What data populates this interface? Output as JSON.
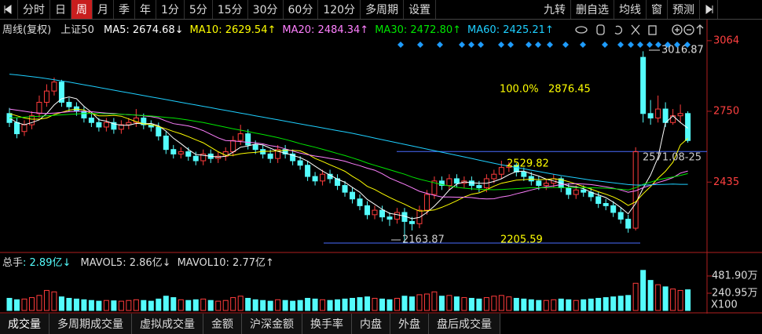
{
  "toolbar": {
    "left": [
      "分时",
      "日",
      "周",
      "月",
      "季",
      "年",
      "1分",
      "5分",
      "15分",
      "30分",
      "60分",
      "120分",
      "多周期",
      "设置"
    ],
    "right": [
      "九转",
      "删自选",
      "均线",
      "窗",
      "预测"
    ],
    "active": "周"
  },
  "tabs": {
    "items": [
      "成交量",
      "多周期成交量",
      "虚拟成交量",
      "金额",
      "沪深金额",
      "换手率",
      "内盘",
      "外盘",
      "盘后成交量"
    ],
    "active": "成交量"
  },
  "chart_data": {
    "type": "candlestick",
    "title": "周线(复权)",
    "subtitle": "上证50",
    "up_color": "#ff3c3c",
    "down_color": "#54fcfc",
    "open": [
      2740,
      2700,
      2660,
      2690,
      2740,
      2790,
      2840,
      2880,
      2790,
      2770,
      2750,
      2720,
      2700,
      2680,
      2700,
      2670,
      2690,
      2700,
      2720,
      2690,
      2680,
      2640,
      2580,
      2560,
      2570,
      2550,
      2530,
      2560,
      2540,
      2550,
      2570,
      2620,
      2650,
      2600,
      2580,
      2560,
      2540,
      2580,
      2560,
      2530,
      2510,
      2460,
      2440,
      2470,
      2450,
      2420,
      2390,
      2360,
      2330,
      2290,
      2310,
      2280,
      2270,
      2300,
      2260,
      2250,
      2310,
      2380,
      2440,
      2420,
      2450,
      2430,
      2440,
      2420,
      2410,
      2450,
      2470,
      2500,
      2510,
      2480,
      2460,
      2440,
      2420,
      2430,
      2450,
      2410,
      2380,
      2400,
      2390,
      2370,
      2340,
      2330,
      2300,
      2270,
      2230,
      2990,
      2740,
      2720,
      2760,
      2700,
      2730,
      2740
    ],
    "high": [
      2765,
      2720,
      2710,
      2750,
      2820,
      2870,
      2900,
      2890,
      2810,
      2790,
      2770,
      2740,
      2720,
      2720,
      2720,
      2710,
      2720,
      2760,
      2740,
      2710,
      2700,
      2660,
      2600,
      2590,
      2590,
      2570,
      2580,
      2580,
      2570,
      2590,
      2640,
      2690,
      2670,
      2620,
      2600,
      2580,
      2600,
      2600,
      2580,
      2550,
      2530,
      2480,
      2490,
      2490,
      2470,
      2440,
      2410,
      2380,
      2350,
      2330,
      2330,
      2300,
      2320,
      2320,
      2280,
      2330,
      2400,
      2460,
      2460,
      2470,
      2470,
      2460,
      2460,
      2440,
      2470,
      2490,
      2529.82,
      2525,
      2520,
      2500,
      2480,
      2460,
      2450,
      2470,
      2460,
      2430,
      2420,
      2420,
      2410,
      2390,
      2360,
      2350,
      2320,
      2290,
      2590,
      3016.87,
      2800,
      2820,
      2790,
      2760,
      2780,
      2750
    ],
    "low": [
      2680,
      2630,
      2640,
      2670,
      2720,
      2770,
      2820,
      2770,
      2750,
      2730,
      2700,
      2680,
      2660,
      2660,
      2650,
      2650,
      2670,
      2680,
      2670,
      2660,
      2620,
      2560,
      2540,
      2540,
      2530,
      2510,
      2510,
      2520,
      2520,
      2530,
      2550,
      2600,
      2580,
      2560,
      2540,
      2520,
      2520,
      2540,
      2510,
      2490,
      2440,
      2420,
      2420,
      2430,
      2400,
      2370,
      2340,
      2310,
      2270,
      2270,
      2260,
      2240,
      2250,
      2163.87,
      2220,
      2230,
      2290,
      2360,
      2400,
      2400,
      2410,
      2410,
      2400,
      2390,
      2390,
      2430,
      2450,
      2480,
      2460,
      2440,
      2420,
      2400,
      2400,
      2410,
      2390,
      2360,
      2360,
      2370,
      2350,
      2320,
      2310,
      2280,
      2250,
      2210,
      2220,
      2700,
      2690,
      2700,
      2680,
      2690,
      2700,
      2610
    ],
    "close": [
      2700,
      2650,
      2690,
      2730,
      2790,
      2840,
      2880,
      2790,
      2770,
      2750,
      2720,
      2700,
      2680,
      2700,
      2670,
      2690,
      2700,
      2720,
      2690,
      2680,
      2640,
      2580,
      2560,
      2570,
      2550,
      2530,
      2560,
      2540,
      2550,
      2570,
      2620,
      2650,
      2600,
      2580,
      2560,
      2540,
      2580,
      2560,
      2530,
      2510,
      2460,
      2440,
      2470,
      2450,
      2420,
      2390,
      2360,
      2330,
      2290,
      2310,
      2280,
      2270,
      2300,
      2260,
      2250,
      2310,
      2380,
      2440,
      2420,
      2450,
      2430,
      2440,
      2420,
      2410,
      2450,
      2470,
      2500,
      2510,
      2480,
      2460,
      2440,
      2420,
      2430,
      2450,
      2410,
      2380,
      2400,
      2390,
      2370,
      2340,
      2330,
      2300,
      2270,
      2230,
      2570,
      2740,
      2720,
      2760,
      2700,
      2730,
      2740,
      2620
    ],
    "ylim": [
      2136,
      3088
    ],
    "yticks": [
      3064,
      2750,
      2435
    ],
    "ma_series": [
      {
        "name": "MA5",
        "color": "#ffffff",
        "value_label": ": 2674.68↓",
        "values": [
          2720,
          2700,
          2690,
          2700,
          2712,
          2740,
          2778,
          2806,
          2814,
          2806,
          2772,
          2746,
          2712,
          2706,
          2694,
          2688,
          2688,
          2696,
          2694,
          2696,
          2686,
          2662,
          2630,
          2606,
          2580,
          2558,
          2554,
          2550,
          2546,
          2550,
          2568,
          2590,
          2596,
          2604,
          2600,
          2586,
          2572,
          2564,
          2554,
          2544,
          2528,
          2506,
          2484,
          2466,
          2448,
          2434,
          2412,
          2390,
          2358,
          2336,
          2314,
          2296,
          2290,
          2284,
          2272,
          2278,
          2300,
          2328,
          2362,
          2400,
          2426,
          2436,
          2432,
          2430,
          2430,
          2438,
          2450,
          2468,
          2482,
          2484,
          2472,
          2462,
          2448,
          2440,
          2430,
          2418,
          2414,
          2406,
          2390,
          2378,
          2366,
          2346,
          2322,
          2294,
          2340,
          2408,
          2466,
          2544,
          2698,
          2730,
          2700,
          2674.68
        ]
      },
      {
        "name": "MA10",
        "color": "#ffff00",
        "value_label": ": 2629.54↑",
        "values": [
          2740,
          2730,
          2720,
          2715,
          2715,
          2720,
          2735,
          2745,
          2755,
          2760,
          2756,
          2740,
          2730,
          2730,
          2732,
          2728,
          2716,
          2704,
          2694,
          2690,
          2682,
          2672,
          2660,
          2650,
          2637,
          2623,
          2610,
          2590,
          2570,
          2554,
          2554,
          2561,
          2565,
          2567,
          2572,
          2572,
          2574,
          2576,
          2576,
          2574,
          2560,
          2540,
          2527,
          2512,
          2498,
          2483,
          2461,
          2441,
          2416,
          2402,
          2384,
          2367,
          2351,
          2337,
          2320,
          2306,
          2308,
          2311,
          2323,
          2337,
          2352,
          2369,
          2381,
          2387,
          2401,
          2417,
          2430,
          2437,
          2444,
          2446,
          2448,
          2446,
          2447,
          2450,
          2446,
          2437,
          2427,
          2415,
          2404,
          2392,
          2381,
          2369,
          2353,
          2331,
          2347,
          2383,
          2415,
          2452,
          2483,
          2523,
          2600,
          2629.54
        ]
      },
      {
        "name": "MA20",
        "color": "#ff80ff",
        "value_label": ": 2484.34↑",
        "values": [
          2760,
          2755,
          2750,
          2745,
          2742,
          2740,
          2742,
          2745,
          2748,
          2750,
          2750,
          2748,
          2745,
          2742,
          2740,
          2737,
          2735,
          2733,
          2730,
          2726,
          2720,
          2707,
          2695,
          2690,
          2685,
          2676,
          2664,
          2648,
          2632,
          2620,
          2618,
          2615,
          2612,
          2610,
          2605,
          2597,
          2592,
          2583,
          2573,
          2564,
          2557,
          2551,
          2546,
          2540,
          2535,
          2528,
          2517,
          2508,
          2497,
          2488,
          2472,
          2453,
          2439,
          2425,
          2410,
          2394,
          2385,
          2376,
          2369,
          2369,
          2368,
          2368,
          2366,
          2362,
          2360,
          2361,
          2369,
          2374,
          2383,
          2391,
          2400,
          2408,
          2414,
          2418,
          2424,
          2427,
          2428,
          2426,
          2424,
          2419,
          2414,
          2408,
          2400,
          2390,
          2396,
          2410,
          2421,
          2433,
          2443,
          2455,
          2475,
          2484.34
        ]
      },
      {
        "name": "MA30",
        "color": "#00e600",
        "value_label": ": 2472.80↑",
        "values": [
          2720,
          2722,
          2724,
          2726,
          2728,
          2730,
          2732,
          2734,
          2736,
          2738,
          2740,
          2740,
          2740,
          2739,
          2738,
          2737,
          2735,
          2733,
          2731,
          2729,
          2726,
          2723,
          2720,
          2716,
          2711,
          2705,
          2700,
          2693,
          2686,
          2679,
          2672,
          2666,
          2660,
          2653,
          2647,
          2640,
          2633,
          2625,
          2616,
          2606,
          2598,
          2590,
          2581,
          2572,
          2562,
          2553,
          2543,
          2532,
          2520,
          2510,
          2500,
          2490,
          2480,
          2470,
          2458,
          2448,
          2440,
          2432,
          2424,
          2418,
          2412,
          2408,
          2405,
          2403,
          2402,
          2401,
          2402,
          2404,
          2406,
          2408,
          2410,
          2410,
          2410,
          2411,
          2411,
          2410,
          2410,
          2410,
          2410,
          2409,
          2408,
          2406,
          2403,
          2400,
          2410,
          2425,
          2435,
          2445,
          2452,
          2458,
          2465,
          2472.8
        ]
      },
      {
        "name": "MA60",
        "color": "#1ecfff",
        "value_label": ": 2425.21↑",
        "values": [
          2915,
          2912,
          2908,
          2904,
          2900,
          2895,
          2890,
          2885,
          2880,
          2874,
          2868,
          2862,
          2856,
          2850,
          2844,
          2838,
          2832,
          2826,
          2820,
          2814,
          2808,
          2802,
          2796,
          2790,
          2784,
          2778,
          2772,
          2766,
          2760,
          2754,
          2748,
          2742,
          2736,
          2730,
          2724,
          2718,
          2712,
          2706,
          2700,
          2694,
          2688,
          2682,
          2676,
          2670,
          2664,
          2658,
          2652,
          2645,
          2638,
          2631,
          2624,
          2617,
          2610,
          2603,
          2596,
          2589,
          2582,
          2575,
          2568,
          2561,
          2554,
          2547,
          2540,
          2533,
          2526,
          2519,
          2512,
          2506,
          2500,
          2494,
          2488,
          2482,
          2476,
          2470,
          2464,
          2459,
          2454,
          2449,
          2444,
          2440,
          2436,
          2432,
          2428,
          2424,
          2422,
          2422,
          2423,
          2424,
          2425,
          2426,
          2425,
          2425.21
        ]
      }
    ],
    "annotations": [
      {
        "text": "3016.87"
      },
      {
        "text": "100.0%"
      },
      {
        "text": "2876.45"
      },
      {
        "text": "2529.82"
      },
      {
        "text": "2571.08-25",
        "level": 2571.08
      },
      {
        "text": "2163.87",
        "level": 2163.87
      },
      {
        "text": "2205.59"
      }
    ],
    "volume": {
      "label": "总手",
      "value_label": ": 2.89亿↓",
      "scale_label": "X100",
      "values": [
        170,
        150,
        160,
        180,
        210,
        280,
        260,
        190,
        170,
        160,
        150,
        140,
        130,
        140,
        135,
        130,
        140,
        150,
        140,
        130,
        160,
        200,
        180,
        150,
        140,
        150,
        160,
        140,
        130,
        140,
        180,
        200,
        170,
        150,
        140,
        130,
        150,
        140,
        130,
        140,
        170,
        160,
        150,
        140,
        150,
        160,
        170,
        180,
        190,
        170,
        160,
        150,
        170,
        200,
        190,
        220,
        230,
        260,
        200,
        210,
        190,
        180,
        170,
        160,
        180,
        200,
        210,
        190,
        170,
        160,
        150,
        140,
        140,
        150,
        160,
        150,
        140,
        150,
        160,
        170,
        180,
        190,
        200,
        210,
        380,
        560,
        420,
        360,
        330,
        300,
        280,
        289
      ],
      "ylim": [
        0,
        613
      ],
      "yticks": [
        {
          "value": 481.9,
          "label": "481.90万"
        },
        {
          "value": 240.95,
          "label": "240.95万"
        }
      ],
      "ma_legend": [
        {
          "name": "MAVOL5",
          "value_label": ": 2.86亿↓"
        },
        {
          "name": "MAVOL10",
          "value_label": ": 2.77亿↑"
        }
      ]
    }
  }
}
